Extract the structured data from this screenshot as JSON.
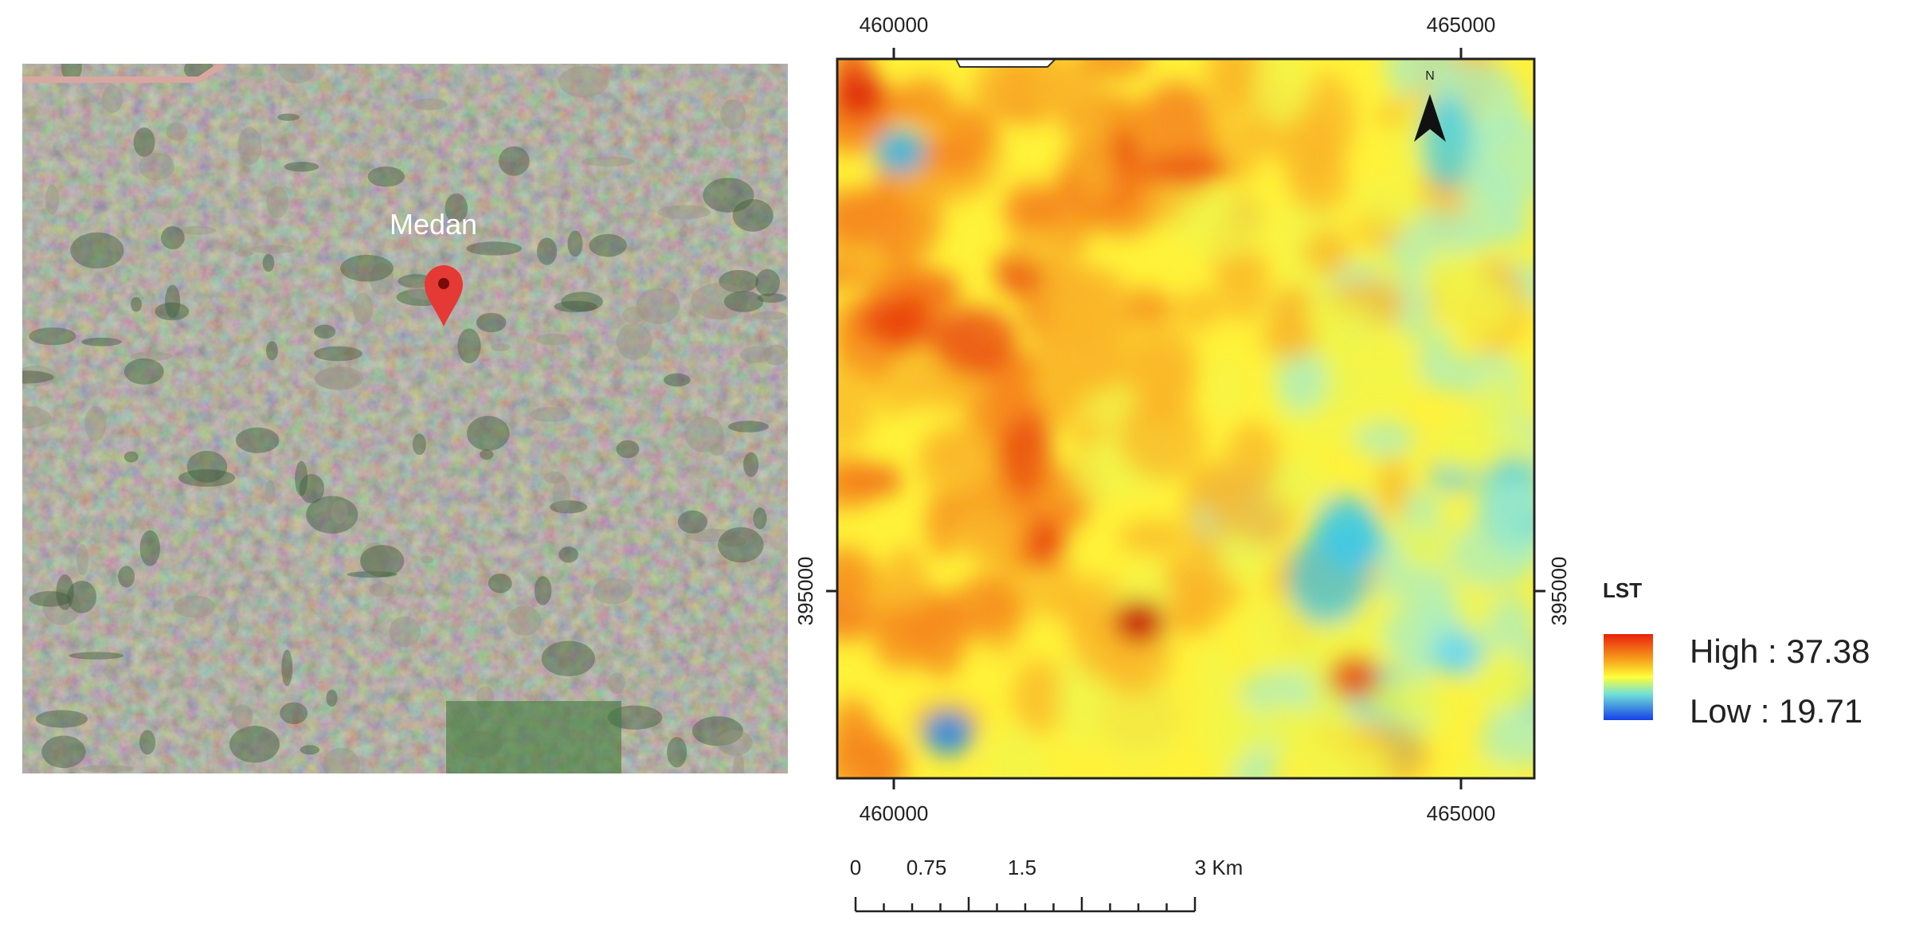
{
  "satellite": {
    "place_label": "Medan"
  },
  "lst_map": {
    "top_labels": [
      "460000",
      "465000"
    ],
    "bottom_labels": [
      "460000",
      "465000"
    ],
    "left_label": "395000",
    "right_label": "395000",
    "north": "N"
  },
  "legend": {
    "title": "LST",
    "high": "High : 37.38",
    "low": "Low : 19.71"
  },
  "scale_bar": {
    "labels": [
      "0",
      "0.75",
      "1.5",
      "3 Km"
    ]
  }
}
